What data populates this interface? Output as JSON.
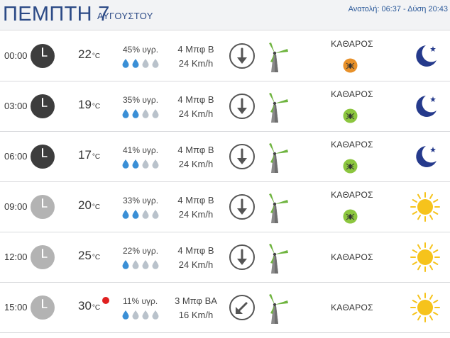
{
  "header": {
    "day": "ΠΕΜΠΤΗ 7",
    "month": "ΑΥΓΟΥΣΤΟΥ",
    "sun_times": "Ανατολή: 06:37 - Δύση 20:43"
  },
  "colors": {
    "title": "#2c4a86",
    "clock_night": "#3d3d3d",
    "clock_day": "#b3b3b3",
    "drop_filled": "#3a8fd6",
    "drop_empty": "#b9c2cb",
    "moon": "#253a8c",
    "sun": "#f6c31c",
    "mosquito_medium": "#e8912a",
    "mosquito_low": "#8cc63f",
    "turbine_blade": "#6fb43f",
    "heat_alert": "#e02020"
  },
  "rows": [
    {
      "time": "00:00",
      "clock_icon": "clock-night-icon",
      "temp": "22",
      "unit": "°C",
      "humidity": "45% υγρ.",
      "drops_filled": 2,
      "wind_beaufort": "4 Μπφ Β",
      "wind_speed": "24 Km/h",
      "wind_icon": "arrow-down-icon",
      "condition": "ΚΑΘΑΡΟΣ",
      "mosquito_level": "medium",
      "sky_icon": "moon-icon"
    },
    {
      "time": "03:00",
      "clock_icon": "clock-night-icon",
      "temp": "19",
      "unit": "°C",
      "humidity": "35% υγρ.",
      "drops_filled": 2,
      "wind_beaufort": "4 Μπφ Β",
      "wind_speed": "24 Km/h",
      "wind_icon": "arrow-down-icon",
      "condition": "ΚΑΘΑΡΟΣ",
      "mosquito_level": "low",
      "sky_icon": "moon-icon"
    },
    {
      "time": "06:00",
      "clock_icon": "clock-night-icon",
      "temp": "17",
      "unit": "°C",
      "humidity": "41% υγρ.",
      "drops_filled": 2,
      "wind_beaufort": "4 Μπφ Β",
      "wind_speed": "24 Km/h",
      "wind_icon": "arrow-down-icon",
      "condition": "ΚΑΘΑΡΟΣ",
      "mosquito_level": "low",
      "sky_icon": "moon-icon"
    },
    {
      "time": "09:00",
      "clock_icon": "clock-day-icon",
      "temp": "20",
      "unit": "°C",
      "humidity": "33% υγρ.",
      "drops_filled": 2,
      "wind_beaufort": "4 Μπφ Β",
      "wind_speed": "24 Km/h",
      "wind_icon": "arrow-down-icon",
      "condition": "ΚΑΘΑΡΟΣ",
      "mosquito_level": "low",
      "sky_icon": "sun-icon"
    },
    {
      "time": "12:00",
      "clock_icon": "clock-day-icon",
      "temp": "25",
      "unit": "°C",
      "humidity": "22% υγρ.",
      "drops_filled": 1,
      "wind_beaufort": "4 Μπφ Β",
      "wind_speed": "24 Km/h",
      "wind_icon": "arrow-down-icon",
      "condition": "ΚΑΘΑΡΟΣ",
      "mosquito_level": "",
      "sky_icon": "sun-icon"
    },
    {
      "time": "15:00",
      "clock_icon": "clock-day-icon",
      "temp": "30",
      "unit": "°C",
      "heat_alert": true,
      "humidity": "11% υγρ.",
      "drops_filled": 1,
      "wind_beaufort": "3 Μπφ ΒΑ",
      "wind_speed": "16 Km/h",
      "wind_icon": "arrow-down-left-icon",
      "condition": "ΚΑΘΑΡΟΣ",
      "mosquito_level": "",
      "sky_icon": "sun-icon"
    }
  ]
}
